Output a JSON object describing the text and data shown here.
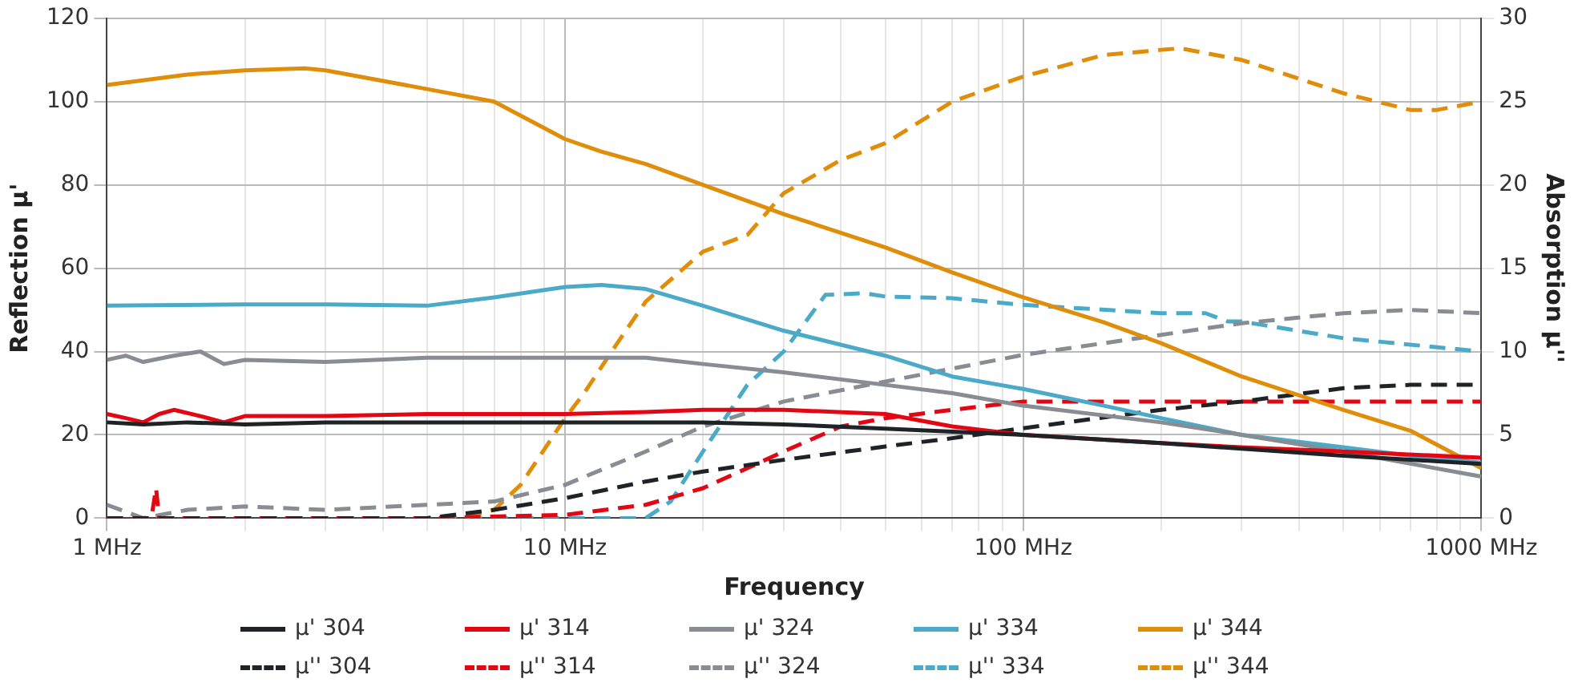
{
  "chart_data": {
    "type": "line",
    "xlabel": "Frequency",
    "ylabel": "Reflection μ'",
    "y2label": "Absorption μ''",
    "log": "x",
    "grid": true,
    "legend": "bottom",
    "xlim": [
      1,
      1000
    ],
    "xticks": [
      {
        "value": 1,
        "label": "1 MHz"
      },
      {
        "value": 2,
        "label": null
      },
      {
        "value": 3,
        "label": null
      },
      {
        "value": 4,
        "label": null
      },
      {
        "value": 5,
        "label": null
      },
      {
        "value": 6,
        "label": null
      },
      {
        "value": 7,
        "label": null
      },
      {
        "value": 8,
        "label": null
      },
      {
        "value": 9,
        "label": null
      },
      {
        "value": 10,
        "label": "10 MHz"
      },
      {
        "value": 20,
        "label": null
      },
      {
        "value": 30,
        "label": null
      },
      {
        "value": 40,
        "label": null
      },
      {
        "value": 50,
        "label": null
      },
      {
        "value": 60,
        "label": null
      },
      {
        "value": 70,
        "label": null
      },
      {
        "value": 80,
        "label": null
      },
      {
        "value": 90,
        "label": null
      },
      {
        "value": 100,
        "label": "100 MHz"
      },
      {
        "value": 200,
        "label": null
      },
      {
        "value": 300,
        "label": null
      },
      {
        "value": 400,
        "label": null
      },
      {
        "value": 500,
        "label": null
      },
      {
        "value": 600,
        "label": null
      },
      {
        "value": 700,
        "label": null
      },
      {
        "value": 800,
        "label": null
      },
      {
        "value": 900,
        "label": null
      },
      {
        "value": 1000,
        "label": "1000 MHz"
      }
    ],
    "ylim": [
      0,
      120
    ],
    "yticks": [
      0,
      20,
      40,
      60,
      80,
      100,
      120
    ],
    "y2lim": [
      0,
      30
    ],
    "y2ticks": [
      0,
      5,
      10,
      15,
      20,
      25,
      30
    ],
    "series": [
      {
        "name": "μ' 304",
        "color": "#1e2328",
        "x": [
          1,
          1.2,
          1.5,
          2,
          3,
          5,
          7,
          10,
          15,
          20,
          30,
          50,
          100,
          200,
          500,
          1000
        ],
        "values": [
          23,
          22.5,
          23,
          22.5,
          23,
          23,
          23,
          23,
          23,
          23,
          22.5,
          21.5,
          20,
          18,
          15,
          13
        ]
      },
      {
        "name": "μ' 314",
        "color": "#e30613",
        "x": [
          1,
          1.1,
          1.2,
          1.3,
          1.4,
          1.6,
          1.8,
          2,
          3,
          5,
          7,
          10,
          15,
          20,
          30,
          50,
          70,
          100,
          200,
          300,
          500,
          1000
        ],
        "values": [
          25,
          24,
          23,
          25,
          26,
          24.5,
          23,
          24.5,
          24.5,
          25,
          25,
          25,
          25.5,
          26,
          26,
          25,
          22,
          20,
          18,
          17,
          16,
          14.5
        ]
      },
      {
        "name": "μ' 324",
        "color": "#878d92",
        "x": [
          1,
          1.1,
          1.2,
          1.4,
          1.6,
          1.8,
          2,
          3,
          5,
          10,
          15,
          20,
          30,
          50,
          70,
          100,
          200,
          300,
          500,
          1000
        ],
        "values": [
          38,
          39,
          37.5,
          39,
          40,
          37,
          38,
          37.5,
          38.5,
          38.5,
          38.5,
          37,
          35,
          32,
          30,
          27,
          23,
          20,
          16,
          10
        ]
      },
      {
        "name": "μ' 334",
        "color": "#4aaac8",
        "x": [
          1,
          2,
          3,
          5,
          7,
          10,
          12,
          15,
          20,
          30,
          50,
          70,
          100,
          150,
          200,
          300,
          500,
          700,
          1000
        ],
        "values": [
          51,
          51.3,
          51.3,
          51,
          53,
          55.5,
          56,
          55,
          51,
          45,
          39,
          34,
          31,
          27,
          24,
          20,
          17,
          15,
          13.3
        ]
      },
      {
        "name": "μ' 344",
        "color": "#e08e0a",
        "x": [
          1,
          1.5,
          2,
          2.7,
          3,
          5,
          7,
          10,
          12,
          15,
          20,
          30,
          50,
          70,
          100,
          150,
          200,
          300,
          500,
          700,
          1000
        ],
        "values": [
          104,
          106.5,
          107.5,
          108,
          107.5,
          103,
          100,
          91,
          88,
          85,
          80,
          73,
          65,
          59,
          53,
          47,
          42,
          34,
          26,
          21,
          12
        ]
      },
      {
        "name": "μ'' 304",
        "color": "#1e2328",
        "axis": "y2",
        "line_style": "dashed",
        "x": [
          1,
          3,
          5,
          7,
          10,
          15,
          20,
          30,
          50,
          70,
          100,
          200,
          300,
          500,
          700,
          1000
        ],
        "values": [
          0,
          0,
          0,
          0.5,
          1.2,
          2.2,
          2.8,
          3.5,
          4.3,
          4.8,
          5.4,
          6.5,
          7,
          7.8,
          8,
          8
        ]
      },
      {
        "name": "μ'' 314",
        "color": "#e30613",
        "axis": "y2",
        "line_style": "dashed",
        "x": [
          1,
          1.25,
          1.28,
          1.3,
          2,
          5,
          10,
          15,
          20,
          25,
          30,
          40,
          50,
          70,
          100,
          200,
          1000
        ],
        "values": [
          0,
          0,
          1.8,
          0,
          0,
          0,
          0.2,
          0.8,
          1.8,
          3,
          4,
          5.5,
          6,
          6.5,
          7,
          7,
          7
        ]
      },
      {
        "name": "μ'' 324",
        "color": "#878d92",
        "axis": "y2",
        "line_style": "dashed",
        "x": [
          1,
          1.2,
          1.5,
          2,
          3,
          5,
          7,
          10,
          15,
          20,
          30,
          50,
          100,
          200,
          300,
          500,
          700,
          1000
        ],
        "values": [
          0.8,
          0,
          0.5,
          0.7,
          0.5,
          0.8,
          1,
          2,
          4,
          5.5,
          7,
          8.2,
          9.8,
          11,
          11.7,
          12.3,
          12.5,
          12.3
        ]
      },
      {
        "name": "μ'' 334",
        "color": "#4aaac8",
        "axis": "y2",
        "line_style": "dashed",
        "x": [
          1,
          5,
          10,
          15,
          17,
          20,
          25,
          30,
          37,
          45,
          50,
          70,
          100,
          200,
          250,
          280,
          300,
          500,
          1000
        ],
        "values": [
          0,
          0,
          0,
          0,
          1,
          4,
          8,
          10,
          13.4,
          13.5,
          13.3,
          13.2,
          12.8,
          12.3,
          12.3,
          11.8,
          11.8,
          10.8,
          10
        ]
      },
      {
        "name": "μ'' 344",
        "color": "#e08e0a",
        "axis": "y2",
        "line_style": "dashed",
        "x": [
          1,
          5,
          6,
          7,
          8,
          10,
          11,
          13,
          15,
          20,
          25,
          30,
          40,
          50,
          70,
          100,
          150,
          220,
          300,
          500,
          700,
          800,
          1000
        ],
        "values": [
          0,
          0,
          0,
          0.5,
          2,
          6,
          7.5,
          10.5,
          13,
          16,
          17,
          19.5,
          21.5,
          22.5,
          25,
          26.5,
          27.8,
          28.2,
          27.5,
          25.5,
          24.5,
          24.5,
          25
        ]
      }
    ]
  }
}
